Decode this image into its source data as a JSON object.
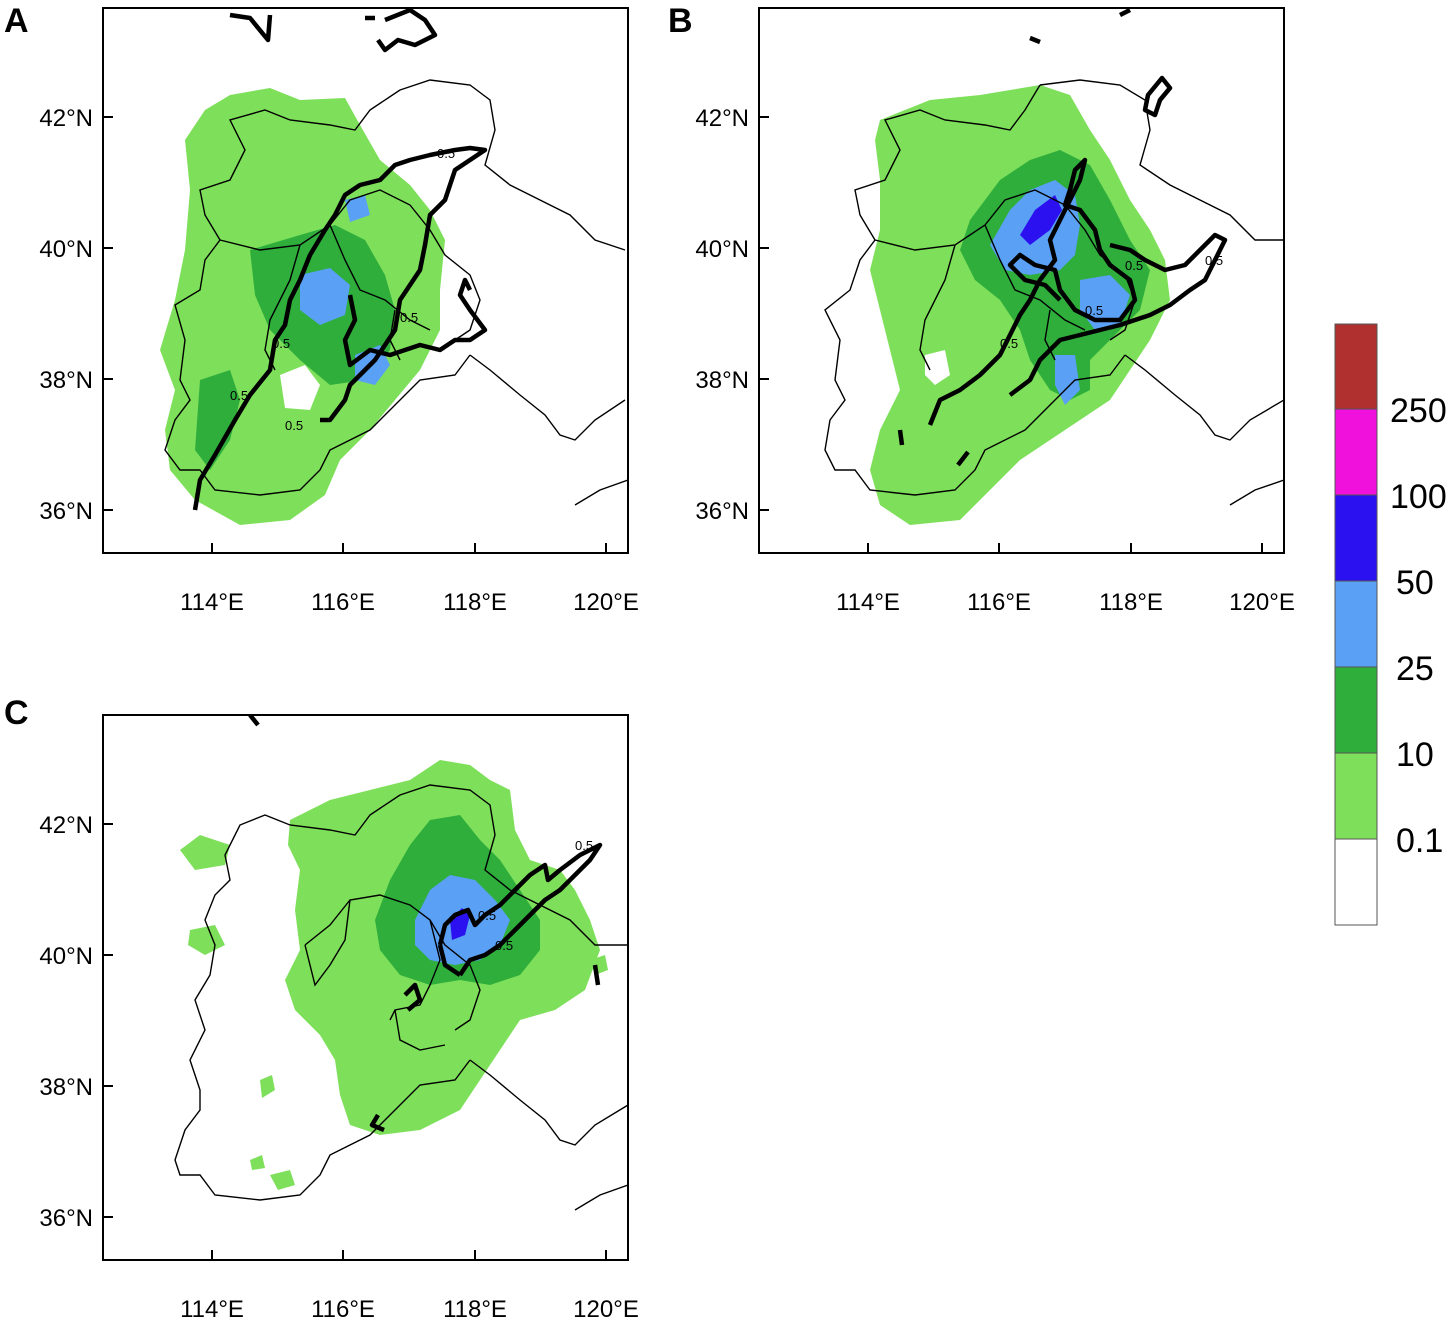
{
  "panels": [
    {
      "letter": "A",
      "contour_label": "0.5"
    },
    {
      "letter": "B",
      "contour_label": "0.5"
    },
    {
      "letter": "C",
      "contour_label": "0.5"
    }
  ],
  "axes": {
    "lat_labels": [
      "42°N",
      "40°N",
      "38°N",
      "36°N"
    ],
    "lon_labels": [
      "114°E",
      "116°E",
      "118°E",
      "120°E"
    ],
    "lat_values": [
      42,
      40,
      38,
      36
    ],
    "lon_values": [
      114,
      116,
      118,
      120
    ],
    "lon_range": [
      112.5,
      120.3
    ],
    "lat_range": [
      35.4,
      43.6
    ]
  },
  "colorbar": {
    "levels": [
      "0.1",
      "10",
      "25",
      "50",
      "100",
      "250"
    ],
    "colors": [
      "#ffffff",
      "#7ee05a",
      "#2fae3c",
      "#5aa0f5",
      "#2b10f0",
      "#f011dc",
      "#b03030"
    ]
  },
  "colors": {
    "light_green": "#7ee05a",
    "dark_green": "#2fae3c",
    "light_blue": "#5aa0f5",
    "dark_blue": "#2b10f0"
  }
}
